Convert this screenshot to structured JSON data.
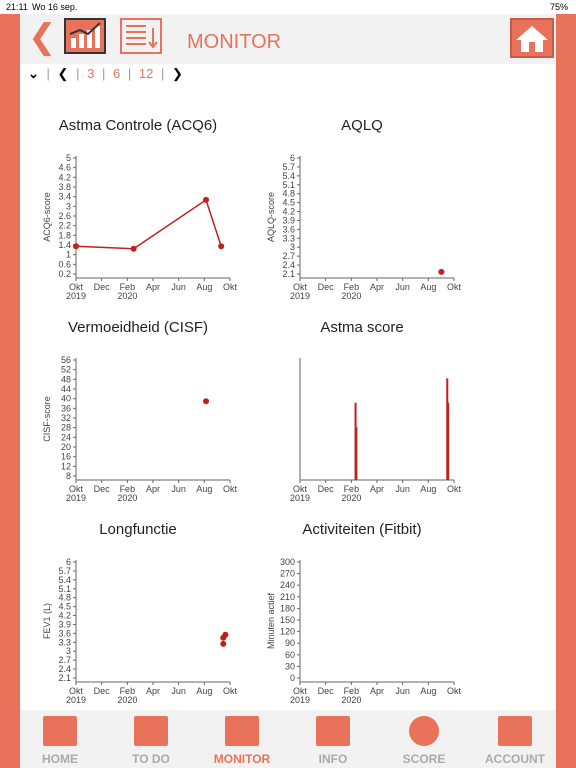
{
  "status": {
    "time": "21:11",
    "date": "Wo 16 sep.",
    "battery": "75%"
  },
  "header": {
    "title": "MONITOR"
  },
  "period": {
    "chevron": "❯",
    "first": "3",
    "second": "6",
    "third": "12",
    "sep": "|"
  },
  "nav": [
    {
      "label": "HOME",
      "icon": "home-icon"
    },
    {
      "label": "TO DO",
      "icon": "checklist-icon"
    },
    {
      "label": "MONITOR",
      "icon": "bar-chart-icon"
    },
    {
      "label": "INFO",
      "icon": "info-icon"
    },
    {
      "label": "SCORE",
      "icon": "plus-icon"
    },
    {
      "label": "ACCOUNT",
      "icon": "gear-icon"
    }
  ],
  "accent": "#e8735a",
  "series_color": "#c0201a",
  "chart_data": [
    {
      "type": "line",
      "title": "Astma Controle (ACQ6)",
      "ylabel": "ACQ6-score",
      "yticks": [
        "5",
        "4.6",
        "4.2",
        "3.8",
        "3.4",
        "3",
        "2.6",
        "2.2",
        "1.8",
        "1.4",
        "1",
        "0.6",
        "0.2"
      ],
      "ylim": [
        0,
        5
      ],
      "x": [
        "2019-10-01",
        "2020-02-15",
        "2020-08-05",
        "2020-09-10"
      ],
      "values": [
        1.3,
        1.2,
        3.2,
        1.3
      ]
    },
    {
      "type": "scatter",
      "title": "AQLQ",
      "ylabel": "AQLQ-score",
      "yticks": [
        "6",
        "5.7",
        "5.4",
        "5.1",
        "4.8",
        "4.5",
        "4.2",
        "3.9",
        "3.6",
        "3.3",
        "3",
        "2.7",
        "2.4",
        "2.1"
      ],
      "ylim": [
        2,
        6
      ],
      "x": [
        "2020-09-01"
      ],
      "values": [
        2.2
      ]
    },
    {
      "type": "scatter",
      "title": "Vermoeidheid (CISF)",
      "ylabel": "CISF-score",
      "yticks": [
        "56",
        "52",
        "48",
        "44",
        "40",
        "36",
        "32",
        "28",
        "24",
        "20",
        "16",
        "12",
        "8"
      ],
      "ylim": [
        8,
        56
      ],
      "x": [
        "2020-08-05"
      ],
      "values": [
        39
      ]
    },
    {
      "type": "bar",
      "title": "Astma score",
      "ylabel": "",
      "yticks": [],
      "ylim": [
        0,
        60
      ],
      "x": [
        "2020-02-10",
        "2020-02-12",
        "2020-09-15",
        "2020-09-17"
      ],
      "values": [
        38,
        26,
        50,
        38
      ]
    },
    {
      "type": "scatter",
      "title": "Longfunctie",
      "ylabel": "FEV1 (L)",
      "yticks": [
        "6",
        "5.7",
        "5.4",
        "5.1",
        "4.8",
        "4.5",
        "4.2",
        "3.9",
        "3.6",
        "3.3",
        "3",
        "2.7",
        "2.4",
        "2.1"
      ],
      "ylim": [
        2,
        6
      ],
      "x": [
        "2020-09-15",
        "2020-09-20",
        "2020-09-15"
      ],
      "values": [
        3.45,
        3.55,
        3.25
      ]
    },
    {
      "type": "line",
      "title": "Activiteiten (Fitbit)",
      "ylabel": "Minuten actief",
      "yticks": [
        "300",
        "270",
        "240",
        "210",
        "180",
        "150",
        "120",
        "90",
        "60",
        "30",
        "0"
      ],
      "ylim": [
        0,
        300
      ],
      "x": [],
      "values": []
    }
  ],
  "xaxis": {
    "ticks": [
      "Okt",
      "Dec",
      "Feb",
      "Apr",
      "Jun",
      "Aug",
      "Okt"
    ],
    "years": [
      "2019",
      "2020"
    ],
    "start": "2019-10-01",
    "end": "2020-10-01"
  }
}
